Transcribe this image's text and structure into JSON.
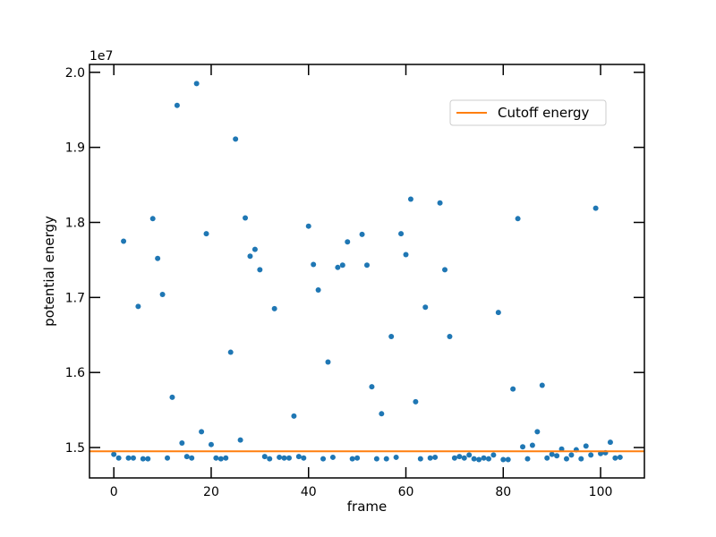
{
  "chart_data": {
    "type": "scatter",
    "title": "",
    "xlabel": "frame",
    "ylabel": "potential energy",
    "offset_label": "1e7",
    "xlim": [
      -5,
      109
    ],
    "ylim": [
      1.4595,
      2.0105
    ],
    "xticks": [
      0,
      20,
      40,
      60,
      80,
      100
    ],
    "yticks": [
      1.5,
      1.6,
      1.7,
      1.8,
      1.9,
      2.0
    ],
    "ytick_labels": [
      "1.5",
      "1.6",
      "1.7",
      "1.8",
      "1.9",
      "2.0"
    ],
    "grid": false,
    "legend": {
      "position": "upper right",
      "entries": [
        "Cutoff energy"
      ]
    },
    "colors": {
      "points": "#1f77b4",
      "cutoff": "#ff7f0e"
    },
    "cutoff": {
      "name": "Cutoff energy",
      "y": 1.495
    },
    "series": [
      {
        "x": [
          0,
          1,
          2,
          3,
          4,
          5,
          6,
          7,
          8,
          9,
          10,
          11,
          12,
          13,
          14,
          15,
          16,
          17,
          18,
          19,
          20,
          21,
          22,
          23,
          24,
          25,
          26,
          27,
          28,
          29,
          30,
          31,
          32,
          33,
          34,
          35,
          36,
          37,
          38,
          39,
          40,
          41,
          42,
          43,
          44,
          45,
          46,
          47,
          48,
          49,
          50,
          51,
          52,
          53,
          54,
          55,
          56,
          57,
          58,
          59,
          60,
          61,
          62,
          63,
          64,
          65,
          66,
          67,
          68,
          69,
          70,
          71,
          72,
          73,
          74,
          75,
          76,
          77,
          78,
          79,
          80,
          81,
          82,
          83,
          84,
          85,
          86,
          87,
          88,
          89,
          90,
          91,
          92,
          93,
          94,
          95,
          96,
          97,
          98,
          99,
          100,
          101,
          102,
          103,
          104
        ],
        "y": [
          1.491,
          1.486,
          1.775,
          1.486,
          1.486,
          1.688,
          1.485,
          1.485,
          1.805,
          1.752,
          1.704,
          1.486,
          1.567,
          1.956,
          1.506,
          1.488,
          1.486,
          1.985,
          1.521,
          1.785,
          1.504,
          1.486,
          1.485,
          1.486,
          1.627,
          1.911,
          1.51,
          1.806,
          1.755,
          1.764,
          1.737,
          1.488,
          1.485,
          1.685,
          1.487,
          1.486,
          1.486,
          1.542,
          1.488,
          1.486,
          1.795,
          1.744,
          1.71,
          1.485,
          1.614,
          1.487,
          1.74,
          1.743,
          1.774,
          1.485,
          1.486,
          1.784,
          1.743,
          1.581,
          1.485,
          1.545,
          1.485,
          1.648,
          1.487,
          1.785,
          1.757,
          1.831,
          1.561,
          1.485,
          1.687,
          1.486,
          1.487,
          1.826,
          1.737,
          1.648,
          1.486,
          1.488,
          1.486,
          1.49,
          1.485,
          1.484,
          1.486,
          1.485,
          1.49,
          1.68,
          1.484,
          1.484,
          1.578,
          1.805,
          1.501,
          1.485,
          1.503,
          1.521,
          1.583,
          1.486,
          1.491,
          1.489,
          1.498,
          1.485,
          1.49,
          1.497,
          1.485,
          1.502,
          1.49,
          1.819,
          1.492,
          1.493,
          1.507,
          1.486,
          1.487
        ]
      }
    ]
  }
}
